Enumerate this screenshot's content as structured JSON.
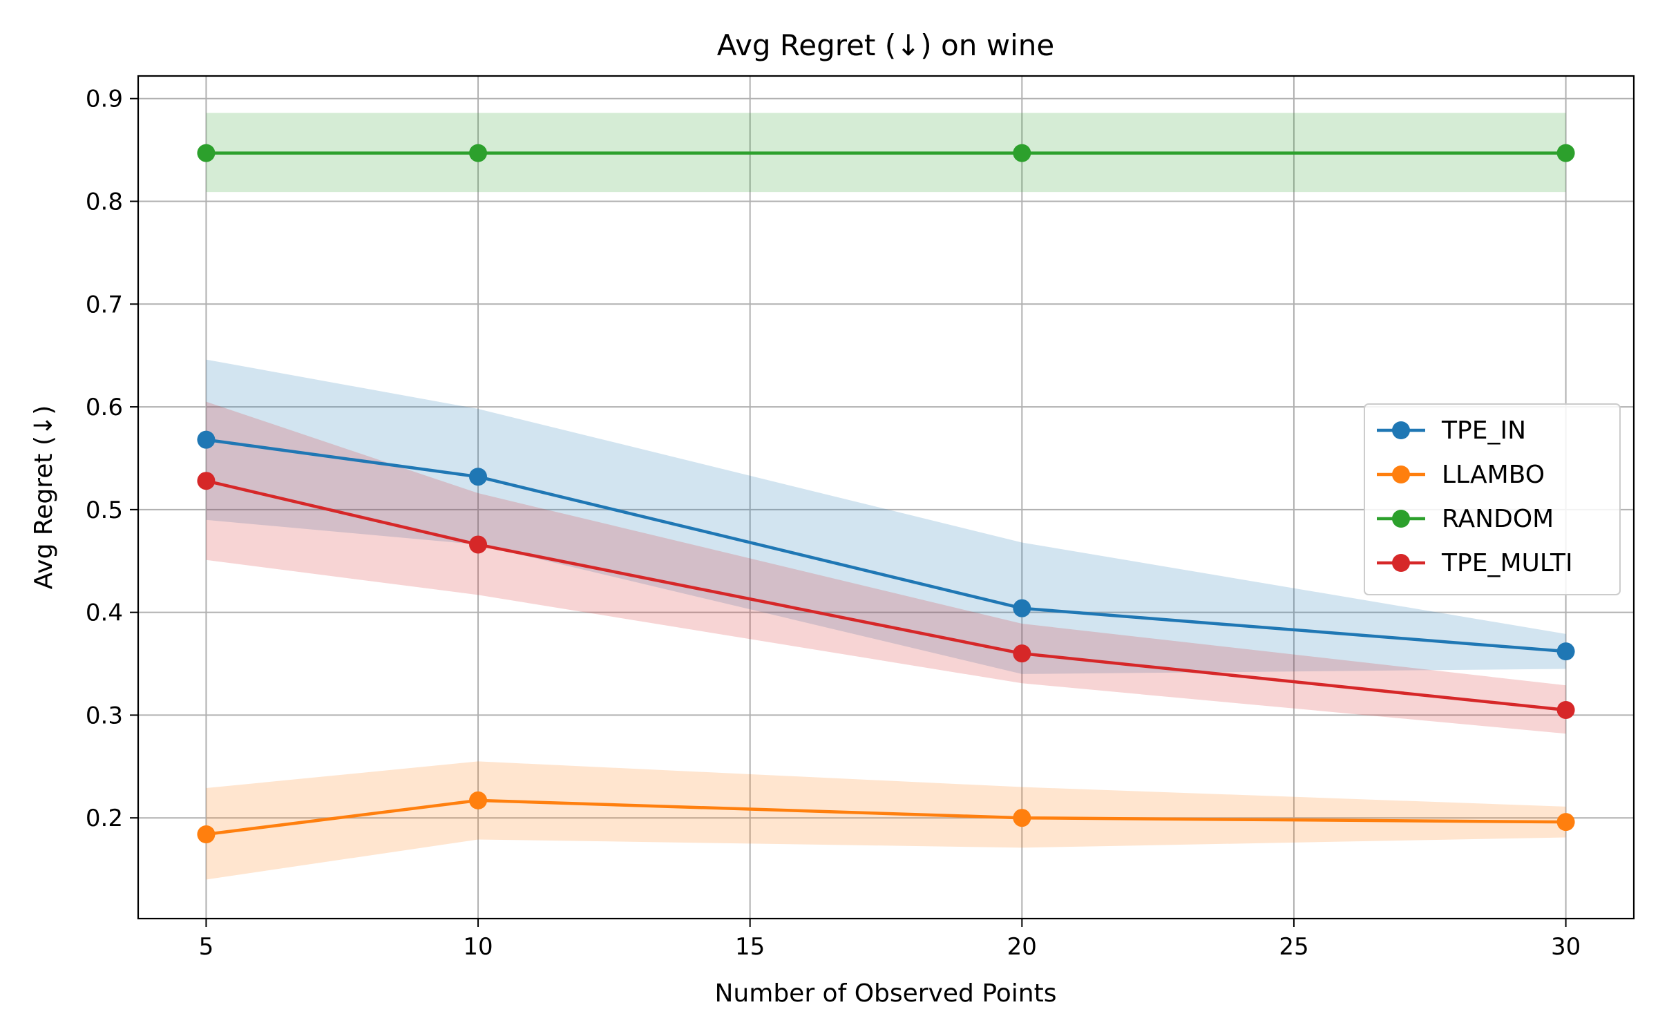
{
  "chart_data": {
    "type": "line",
    "title": "Avg Regret (↓) on wine",
    "xlabel": "Number of Observed Points",
    "ylabel": "Avg Regret (↓)",
    "x": [
      5,
      10,
      20,
      30
    ],
    "xlim": [
      3.75,
      31.25
    ],
    "ylim": [
      0.102,
      0.922
    ],
    "xticks": [
      5,
      10,
      15,
      20,
      25,
      30
    ],
    "yticks": [
      0.2,
      0.3,
      0.4,
      0.5,
      0.6,
      0.7,
      0.8,
      0.9
    ],
    "xtick_labels": [
      "5",
      "10",
      "15",
      "20",
      "25",
      "30"
    ],
    "ytick_labels": [
      "0.2",
      "0.3",
      "0.4",
      "0.5",
      "0.6",
      "0.7",
      "0.8",
      "0.9"
    ],
    "grid": true,
    "legend_position": "center-right",
    "series": [
      {
        "name": "TPE_IN",
        "color": "#1f77b4",
        "band_color": "#1f77b4",
        "values": [
          0.568,
          0.532,
          0.404,
          0.362
        ],
        "lower": [
          0.49,
          0.466,
          0.34,
          0.345
        ],
        "upper": [
          0.646,
          0.598,
          0.468,
          0.379
        ]
      },
      {
        "name": "LLAMBO",
        "color": "#ff7f0e",
        "band_color": "#ff7f0e",
        "values": [
          0.184,
          0.217,
          0.2,
          0.196
        ],
        "lower": [
          0.14,
          0.179,
          0.171,
          0.181
        ],
        "upper": [
          0.229,
          0.255,
          0.23,
          0.211
        ]
      },
      {
        "name": "RANDOM",
        "color": "#2ca02c",
        "band_color": "#2ca02c",
        "values": [
          0.847,
          0.847,
          0.847,
          0.847
        ],
        "lower": [
          0.809,
          0.809,
          0.809,
          0.809
        ],
        "upper": [
          0.886,
          0.886,
          0.886,
          0.886
        ]
      },
      {
        "name": "TPE_MULTI",
        "color": "#d62728",
        "band_color": "#d62728",
        "values": [
          0.528,
          0.466,
          0.36,
          0.305
        ],
        "lower": [
          0.451,
          0.417,
          0.331,
          0.282
        ],
        "upper": [
          0.605,
          0.516,
          0.389,
          0.329
        ]
      }
    ]
  }
}
